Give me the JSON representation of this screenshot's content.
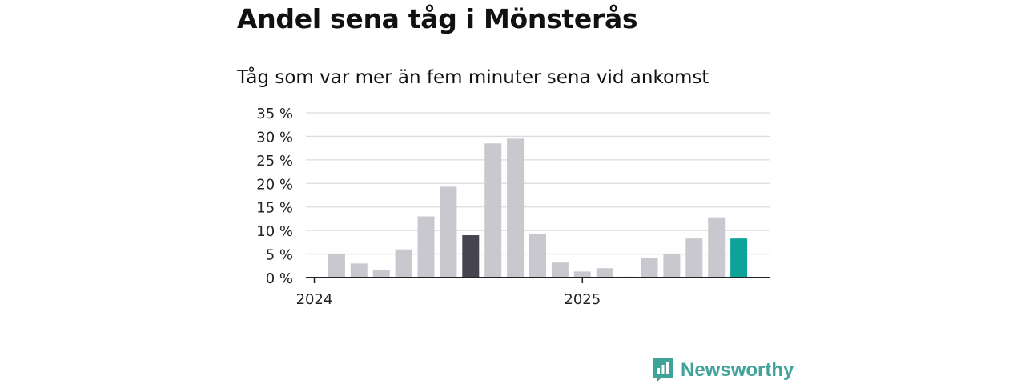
{
  "title": "Andel sena tåg i Mönsterås",
  "subtitle": "Tåg som var mer än fem minuter sena vid ankomst",
  "brand": {
    "name": "Newsworthy",
    "icon": "newsworthy-logo-icon"
  },
  "colors": {
    "bar": "#c9c8cf",
    "highlight_dark": "#45444f",
    "highlight_teal": "#0ea398",
    "grid": "#dcdcdc",
    "axis": "#222222",
    "brand": "#3fa39a"
  },
  "chart_data": {
    "type": "bar",
    "title": "Tåg som var mer än fem minuter sena vid ankomst",
    "x": [
      "2024-01",
      "2024-02",
      "2024-03",
      "2024-04",
      "2024-05",
      "2024-06",
      "2024-07",
      "2024-08",
      "2024-09",
      "2024-10",
      "2024-11",
      "2024-12",
      "2025-01",
      "2025-02",
      "2025-03",
      "2025-04",
      "2025-05",
      "2025-06",
      "2025-07",
      "2025-08"
    ],
    "values": [
      0,
      5,
      3,
      1.7,
      6,
      13,
      19.3,
      9,
      28.5,
      29.5,
      9.3,
      3.2,
      1.3,
      2,
      0.2,
      4.1,
      5,
      8.3,
      12.8,
      8.3
    ],
    "highlight": {
      "2024-08": "dark",
      "2025-08": "teal"
    },
    "x_tick_labels": [
      "2024",
      "2025"
    ],
    "y_tick_labels": [
      "0 %",
      "5 %",
      "10 %",
      "15 %",
      "20 %",
      "25 %",
      "30 %",
      "35 %"
    ],
    "ylim": [
      0,
      35
    ],
    "y_unit": "%",
    "grid": true,
    "legend": "none"
  }
}
